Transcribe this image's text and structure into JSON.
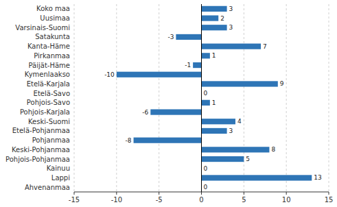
{
  "chart_data": {
    "type": "bar",
    "orientation": "horizontal",
    "categories": [
      "Koko maa",
      "Uusimaa",
      "Varsinais-Suomi",
      "Satakunta",
      "Kanta-Häme",
      "Pirkanmaa",
      "Päijät-Häme",
      "Kymenlaakso",
      "Etelä-Karjala",
      "Etelä-Savo",
      "Pohjois-Savo",
      "Pohjois-Karjala",
      "Keski-Suomi",
      "Etelä-Pohjanmaa",
      "Pohjanmaa",
      "Keski-Pohjanmaa",
      "Pohjois-Pohjanmaa",
      "Kainuu",
      "Lappi",
      "Ahvenanmaa"
    ],
    "values": [
      3,
      2,
      3,
      -3,
      7,
      1,
      -1,
      -10,
      9,
      0,
      1,
      -6,
      4,
      3,
      -8,
      8,
      5,
      0,
      13,
      0
    ],
    "color": "#2E75B6",
    "xlim": [
      -15,
      15
    ],
    "xticks": [
      -15,
      -10,
      -5,
      0,
      5,
      10,
      15
    ],
    "grid": true,
    "data_labels": true
  }
}
